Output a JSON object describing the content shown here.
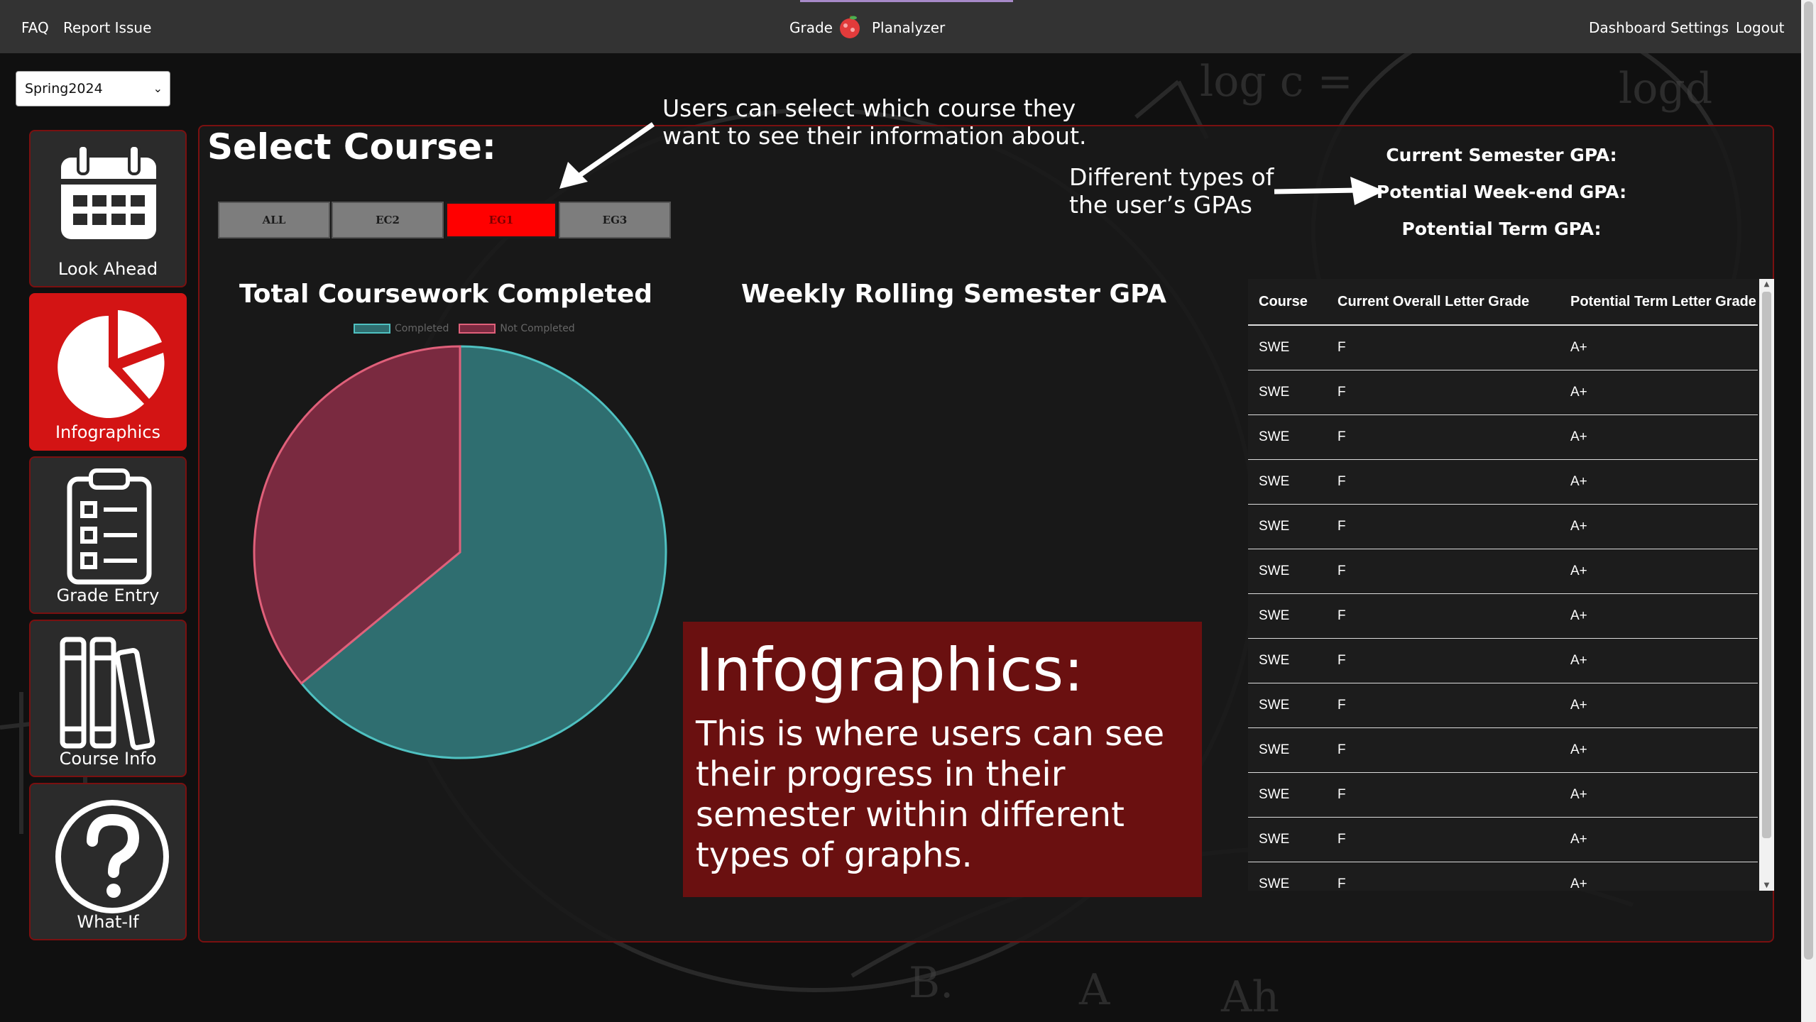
{
  "nav": {
    "faq": "FAQ",
    "report_issue": "Report Issue",
    "brand_left": "Grade",
    "brand_right": "Planalyzer",
    "dashboard": "Dashboard",
    "settings": "Settings",
    "logout": "Logout"
  },
  "semester_select": {
    "value": "Spring2024"
  },
  "sidebar": {
    "items": [
      {
        "label": "Look Ahead",
        "icon": "calendar-icon",
        "active": false
      },
      {
        "label": "Infographics",
        "icon": "pie-chart-icon",
        "active": true
      },
      {
        "label": "Grade Entry",
        "icon": "clipboard-checklist-icon",
        "active": false
      },
      {
        "label": "Course Info",
        "icon": "books-icon",
        "active": false
      },
      {
        "label": "What-If",
        "icon": "question-circle-icon",
        "active": false
      }
    ]
  },
  "main": {
    "select_title": "Select Course:",
    "course_tabs": [
      {
        "label": "ALL",
        "active": false
      },
      {
        "label": "EC2",
        "active": false
      },
      {
        "label": "EG1",
        "active": true
      },
      {
        "label": "EG3",
        "active": false
      }
    ],
    "annotation_select": "Users can select which course they want to see their information about.",
    "annotation_gpa": "Different types of the user’s GPAs",
    "gpa": {
      "current_semester": "Current Semester GPA:",
      "potential_week_end": "Potential Week-end GPA:",
      "potential_term": "Potential Term GPA:"
    },
    "pie_title": "Total Coursework Completed",
    "line_title": "Weekly Rolling Semester GPA",
    "info_box": {
      "heading": "Infographics:",
      "body": "This is where users can see their progress in their semester within different types of graphs."
    }
  },
  "chart_data": {
    "type": "pie",
    "title": "Total Coursework Completed",
    "legend": [
      "Completed",
      "Not Completed"
    ],
    "legend_position": "top",
    "slices": [
      {
        "label": "Completed",
        "value": 64,
        "color": "#2f6e70"
      },
      {
        "label": "Not Completed",
        "value": 36,
        "color": "#7a2a40"
      }
    ]
  },
  "grades_table": {
    "columns": [
      "Course",
      "Current Overall Letter Grade",
      "Potential Term Letter Grade"
    ],
    "rows": [
      [
        "SWE",
        "F",
        "A+"
      ],
      [
        "SWE",
        "F",
        "A+"
      ],
      [
        "SWE",
        "F",
        "A+"
      ],
      [
        "SWE",
        "F",
        "A+"
      ],
      [
        "SWE",
        "F",
        "A+"
      ],
      [
        "SWE",
        "F",
        "A+"
      ],
      [
        "SWE",
        "F",
        "A+"
      ],
      [
        "SWE",
        "F",
        "A+"
      ],
      [
        "SWE",
        "F",
        "A+"
      ],
      [
        "SWE",
        "F",
        "A+"
      ],
      [
        "SWE",
        "F",
        "A+"
      ],
      [
        "SWE",
        "F",
        "A+"
      ],
      [
        "SWE",
        "F",
        "A+"
      ]
    ]
  },
  "colors": {
    "accent_red": "#d31414",
    "panel_border": "#7a1010",
    "completed": "#2f6e70",
    "completed_stroke": "#4fc1c1",
    "not_completed": "#7a2a40",
    "not_completed_stroke": "#e0607a"
  }
}
